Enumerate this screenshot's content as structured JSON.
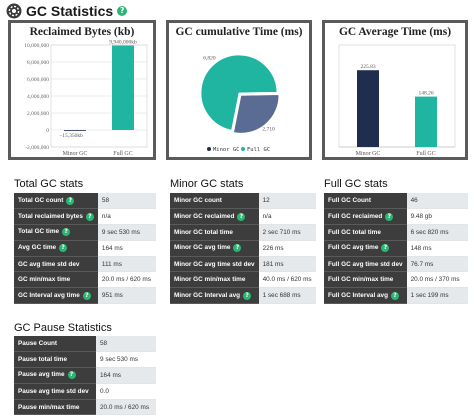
{
  "page": {
    "title": "GC Statistics",
    "help_icon": "?"
  },
  "chart_data": [
    {
      "type": "bar",
      "title": "Reclaimed Bytes (kb)",
      "categories": [
        "Minor GC",
        "Full GC"
      ],
      "values": [
        -15350,
        9940000
      ],
      "data_labels": [
        "−15,350kb",
        "9,940,000kb"
      ],
      "ylim": [
        -2000000,
        10000000
      ],
      "yticks": [
        -2000000,
        0,
        2000000,
        4000000,
        6000000,
        8000000,
        10000000
      ],
      "ytick_labels": [
        "-2,000,000",
        "0",
        "2,000,000",
        "4,000,000",
        "6,000,000",
        "8,000,000",
        "10,000,000"
      ],
      "colors": [
        "#1f2d4f",
        "#1fb5a0"
      ],
      "grid": true
    },
    {
      "type": "pie",
      "title": "GC cumulative Time (ms)",
      "categories": [
        "Minor GC",
        "Full GC"
      ],
      "values": [
        2710,
        6820
      ],
      "data_labels": [
        "2,710",
        "6,820"
      ],
      "colors": [
        "#5a6b94",
        "#1fb5a0"
      ],
      "legend": "bottom"
    },
    {
      "type": "bar",
      "title": "GC Average Time (ms)",
      "categories": [
        "Minor GC",
        "Full GC"
      ],
      "values": [
        225.83,
        148.26
      ],
      "data_labels": [
        "225.83",
        "148.26"
      ],
      "ylim": [
        0,
        300
      ],
      "colors": [
        "#1f2d4f",
        "#1fb5a0"
      ],
      "grid": true
    }
  ],
  "total_gc": {
    "title": "Total GC stats",
    "rows": [
      {
        "label": "Total GC count",
        "help": true,
        "value": "58"
      },
      {
        "label": "Total reclaimed bytes",
        "help": true,
        "value": "n/a"
      },
      {
        "label": "Total GC time",
        "help": true,
        "value": "9 sec 530 ms"
      },
      {
        "label": "Avg GC time",
        "help": true,
        "value": "164 ms"
      },
      {
        "label": "GC avg time std dev",
        "help": false,
        "value": "111 ms"
      },
      {
        "label": "GC min/max time",
        "help": false,
        "value": "20.0 ms / 620 ms"
      },
      {
        "label": "GC Interval avg time",
        "help": true,
        "value": "951 ms"
      }
    ]
  },
  "minor_gc": {
    "title": "Minor GC stats",
    "rows": [
      {
        "label": "Minor GC count",
        "help": false,
        "value": "12"
      },
      {
        "label": "Minor GC reclaimed",
        "help": true,
        "value": "n/a"
      },
      {
        "label": "Minor GC total time",
        "help": false,
        "value": "2 sec 710 ms"
      },
      {
        "label": "Minor GC avg time",
        "help": true,
        "value": "226 ms"
      },
      {
        "label": "Minor GC avg time std dev",
        "help": false,
        "value": "181 ms"
      },
      {
        "label": "Minor GC min/max time",
        "help": false,
        "value": "40.0 ms / 620 ms"
      },
      {
        "label": "Minor GC Interval avg",
        "help": true,
        "value": "1 sec 688 ms"
      }
    ]
  },
  "full_gc": {
    "title": "Full GC stats",
    "rows": [
      {
        "label": "Full GC Count",
        "help": false,
        "value": "46"
      },
      {
        "label": "Full GC reclaimed",
        "help": true,
        "value": "9.48 gb"
      },
      {
        "label": "Full GC total time",
        "help": false,
        "value": "6 sec 820 ms"
      },
      {
        "label": "Full GC avg time",
        "help": true,
        "value": "148 ms"
      },
      {
        "label": "Full GC avg time std dev",
        "help": false,
        "value": "76.7 ms"
      },
      {
        "label": "Full GC min/max time",
        "help": false,
        "value": "20.0 ms / 370 ms"
      },
      {
        "label": "Full GC Interval avg",
        "help": true,
        "value": "1 sec 199 ms"
      }
    ]
  },
  "pause": {
    "title": "GC Pause Statistics",
    "rows": [
      {
        "label": "Pause Count",
        "value": "58"
      },
      {
        "label": "Pause total time",
        "value": "9 sec 530 ms"
      },
      {
        "label": "Pause avg time",
        "help": true,
        "value": "164 ms"
      },
      {
        "label": "Pause avg time std dev",
        "value": "0.0"
      },
      {
        "label": "Pause min/max time",
        "value": "20.0 ms / 620 ms"
      }
    ]
  }
}
